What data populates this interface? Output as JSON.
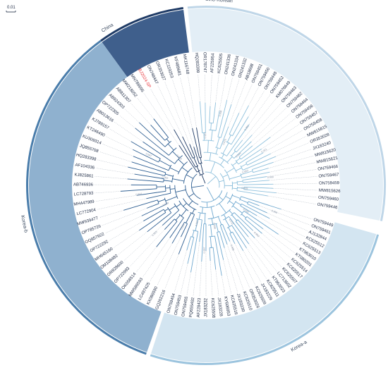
{
  "scale_bar": {
    "label": "0.01"
  },
  "clades": [
    {
      "key": "china",
      "name": "China",
      "start": 126.0,
      "end": 97.3,
      "ring": "#1f3b66",
      "band": "#3f5f8c",
      "branch": "#1f3b66"
    },
    {
      "key": "sino",
      "name": "Sino-Korean",
      "start": 95.9,
      "end": -11.5,
      "ring": "#bfd6e8",
      "band": "#e3eef6",
      "branch": "#8ec0dc"
    },
    {
      "key": "koreaa",
      "name": "Korea-a",
      "start": -16.0,
      "end": -108.1,
      "ring": "#9cc4de",
      "band": "#d3e5f1",
      "branch": "#6fa8cf"
    },
    {
      "key": "koreab",
      "name": "Korea-b",
      "start": -109.5,
      "end": -234.0,
      "ring": "#4a7dab",
      "band": "#8fb1cf",
      "branch": "#2f5f92"
    }
  ],
  "tips": [
    {
      "label": "ON759446",
      "clade": "sino"
    },
    {
      "label": "ON759460",
      "clade": "sino"
    },
    {
      "label": "MW815626",
      "clade": "sino"
    },
    {
      "label": "ON759459",
      "clade": "sino"
    },
    {
      "label": "ON759467",
      "clade": "sino"
    },
    {
      "label": "ON759466",
      "clade": "sino"
    },
    {
      "label": "MW815621",
      "clade": "sino"
    },
    {
      "label": "MW815620",
      "clade": "sino"
    },
    {
      "label": "JX183240",
      "clade": "sino"
    },
    {
      "label": "OR353028",
      "clade": "sino"
    },
    {
      "label": "MW815615",
      "clade": "sino"
    },
    {
      "label": "ON759458",
      "clade": "sino"
    },
    {
      "label": "ON759457",
      "clade": "sino"
    },
    {
      "label": "ON759456",
      "clade": "sino"
    },
    {
      "label": "ON759464",
      "clade": "sino"
    },
    {
      "label": "ON759462",
      "clade": "sino"
    },
    {
      "label": "ON759463",
      "clade": "sino"
    },
    {
      "label": "KM076649",
      "clade": "sino"
    },
    {
      "label": "ON759452",
      "clade": "sino"
    },
    {
      "label": "ON759448",
      "clade": "sino"
    },
    {
      "label": "ON759450",
      "clade": "sino"
    },
    {
      "label": "ON759451",
      "clade": "sino"
    },
    {
      "label": "AB18698",
      "clade": "sino"
    },
    {
      "label": "ON241332",
      "clade": "sino"
    },
    {
      "label": "ON241334",
      "clade": "sino"
    },
    {
      "label": "ON241336",
      "clade": "sino"
    },
    {
      "label": "KC625505",
      "clade": "sino"
    },
    {
      "label": "AF225954",
      "clade": "sino"
    },
    {
      "label": "OR178747",
      "clade": "sino"
    },
    {
      "label": "HQ283399",
      "clade": "sino"
    },
    {
      "label": "MN786695",
      "clade": "china"
    },
    {
      "label": "BJ2024-SP",
      "clade": "china",
      "highlight": true
    },
    {
      "label": "ON748447",
      "clade": "china"
    },
    {
      "label": "OR353027",
      "clade": "china"
    },
    {
      "label": "KC119253",
      "clade": "china"
    },
    {
      "label": "KF489681",
      "clade": "china"
    },
    {
      "label": "MK116748",
      "clade": "china"
    },
    {
      "label": "GQ202216",
      "clade": "koreab"
    },
    {
      "label": "KX086590",
      "clade": "koreab"
    },
    {
      "label": "LC497425",
      "clade": "koreab"
    },
    {
      "label": "MW586593",
      "clade": "koreab"
    },
    {
      "label": "OK058514",
      "clade": "koreab"
    },
    {
      "label": "OP722993",
      "clade": "koreab"
    },
    {
      "label": "OR828600",
      "clade": "koreab"
    },
    {
      "label": "OM108482",
      "clade": "koreab"
    },
    {
      "label": "MH645160",
      "clade": "koreab"
    },
    {
      "label": "OP722292",
      "clade": "koreab"
    },
    {
      "label": "OQ857922",
      "clade": "koreab"
    },
    {
      "label": "OP785726",
      "clade": "koreab"
    },
    {
      "label": "MW939477",
      "clade": "koreab"
    },
    {
      "label": "LC772904",
      "clade": "koreab"
    },
    {
      "label": "MH447989",
      "clade": "koreab"
    },
    {
      "label": "LC728793",
      "clade": "koreab"
    },
    {
      "label": "AB746936",
      "clade": "koreab"
    },
    {
      "label": "KJ825861",
      "clade": "koreab"
    },
    {
      "label": "AF104336",
      "clade": "koreab"
    },
    {
      "label": "HQ283398",
      "clade": "koreab"
    },
    {
      "label": "JQ855708",
      "clade": "koreab"
    },
    {
      "label": "KU309314",
      "clade": "koreab"
    },
    {
      "label": "KT246490",
      "clade": "koreab"
    },
    {
      "label": "KJ789157",
      "clade": "koreab"
    },
    {
      "label": "AB013616",
      "clade": "koreab"
    },
    {
      "label": "OP722305",
      "clade": "koreab"
    },
    {
      "label": "AB924303",
      "clade": "koreab"
    },
    {
      "label": "AB811307",
      "clade": "koreab"
    },
    {
      "label": "MW218052",
      "clade": "koreab"
    },
    {
      "label": "ON759449",
      "clade": "koreaa"
    },
    {
      "label": "ON759461",
      "clade": "koreaa"
    },
    {
      "label": "AJ132844",
      "clade": "koreaa"
    },
    {
      "label": "KC625512",
      "clade": "koreaa"
    },
    {
      "label": "KC625513",
      "clade": "koreaa"
    },
    {
      "label": "KT963010",
      "clade": "koreaa"
    },
    {
      "label": "KT080201",
      "clade": "koreaa"
    },
    {
      "label": "KC625514",
      "clade": "koreaa"
    },
    {
      "label": "KC625517",
      "clade": "koreaa"
    },
    {
      "label": "KC625507",
      "clade": "koreaa"
    },
    {
      "label": "LC713602",
      "clade": "koreaa"
    },
    {
      "label": "KT963023",
      "clade": "koreaa"
    },
    {
      "label": "KC625511",
      "clade": "koreaa"
    },
    {
      "label": "JX183229",
      "clade": "koreaa"
    },
    {
      "label": "KC625509",
      "clade": "koreaa"
    },
    {
      "label": "OR353026",
      "clade": "koreaa"
    },
    {
      "label": "KC625510",
      "clade": "koreaa"
    },
    {
      "label": "JX183230",
      "clade": "koreaa"
    },
    {
      "label": "KC625516",
      "clade": "koreaa"
    },
    {
      "label": "KY606953",
      "clade": "koreaa"
    },
    {
      "label": "JX183228",
      "clade": "koreaa"
    },
    {
      "label": "KC625508",
      "clade": "koreaa"
    },
    {
      "label": "JX183232",
      "clade": "koreaa"
    },
    {
      "label": "AF228423",
      "clade": "koreaa"
    },
    {
      "label": "PQ655492",
      "clade": "koreaa"
    },
    {
      "label": "ON759455",
      "clade": "koreaa"
    },
    {
      "label": "ON759453",
      "clade": "koreaa"
    },
    {
      "label": "ON759454",
      "clade": "koreaa"
    }
  ],
  "bootstrap": [
    {
      "value": "0.939",
      "clade": "koreab"
    },
    {
      "value": "0.987",
      "clade": "koreab"
    },
    {
      "value": "0.955",
      "clade": "koreab"
    },
    {
      "value": "0.922",
      "clade": "koreab"
    },
    {
      "value": "0.969",
      "clade": "koreab"
    },
    {
      "value": "0.903",
      "clade": "koreab"
    },
    {
      "value": "0.957",
      "clade": "koreab"
    },
    {
      "value": "0.939",
      "clade": "sino"
    },
    {
      "value": "0.999",
      "clade": "sino"
    },
    {
      "value": "0.953",
      "clade": "sino"
    },
    {
      "value": "0.921",
      "clade": "sino"
    },
    {
      "value": "0.994",
      "clade": "sino"
    },
    {
      "value": "0.902",
      "clade": "sino"
    },
    {
      "value": "0.875",
      "clade": "sino"
    },
    {
      "value": "0.998",
      "clade": "sino"
    },
    {
      "value": "0.967",
      "clade": "sino"
    },
    {
      "value": "0.987",
      "clade": "koreaa"
    },
    {
      "value": "0.997",
      "clade": "koreaa"
    },
    {
      "value": "0.896",
      "clade": "koreaa"
    },
    {
      "value": "0.986",
      "clade": "koreaa"
    },
    {
      "value": "0.912",
      "clade": "koreaa"
    },
    {
      "value": "0.963",
      "clade": "koreaa"
    },
    {
      "value": "0.948",
      "clade": "koreaa"
    },
    {
      "value": "0.996",
      "clade": "koreaa"
    }
  ]
}
